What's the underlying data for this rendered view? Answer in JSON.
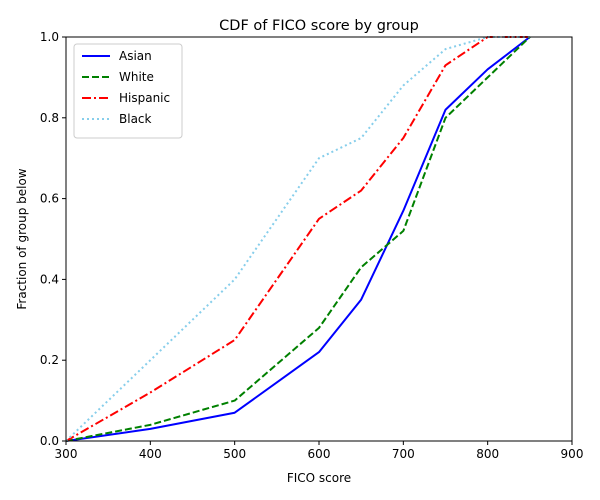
{
  "chart_data": {
    "type": "line",
    "title": "CDF of FICO score by group",
    "xlabel": "FICO score",
    "ylabel": "Fraction of group below",
    "xlim": [
      300,
      900
    ],
    "ylim": [
      0,
      1
    ],
    "xticks": [
      "300",
      "400",
      "500",
      "600",
      "700",
      "800",
      "900"
    ],
    "yticks": [
      "0.0",
      "0.2",
      "0.4",
      "0.6",
      "0.8",
      "1.0"
    ],
    "xtick_values": [
      300,
      400,
      500,
      600,
      700,
      800,
      900
    ],
    "ytick_values": [
      0,
      0.2,
      0.4,
      0.6,
      0.8,
      1.0
    ],
    "grid": false,
    "legend_position": "top-left",
    "series": [
      {
        "name": "Asian",
        "color": "#0000ff",
        "style": "solid",
        "x": [
          300,
          400,
          500,
          600,
          650,
          700,
          750,
          800,
          850
        ],
        "y": [
          0.0,
          0.03,
          0.07,
          0.22,
          0.35,
          0.57,
          0.82,
          0.92,
          1.0
        ]
      },
      {
        "name": "White",
        "color": "#008000",
        "style": "dashed",
        "x": [
          300,
          400,
          500,
          600,
          650,
          700,
          750,
          800,
          850
        ],
        "y": [
          0.0,
          0.04,
          0.1,
          0.28,
          0.43,
          0.52,
          0.8,
          0.9,
          1.0
        ]
      },
      {
        "name": "Hispanic",
        "color": "#ff0000",
        "style": "dashdot",
        "x": [
          300,
          400,
          500,
          600,
          650,
          700,
          750,
          800,
          850
        ],
        "y": [
          0.0,
          0.12,
          0.25,
          0.55,
          0.62,
          0.75,
          0.93,
          1.0,
          1.0
        ]
      },
      {
        "name": "Black",
        "color": "#87ceeb",
        "style": "dotted",
        "x": [
          300,
          400,
          500,
          600,
          650,
          700,
          750,
          800,
          850
        ],
        "y": [
          0.0,
          0.2,
          0.4,
          0.7,
          0.75,
          0.88,
          0.97,
          1.0,
          1.0
        ]
      }
    ]
  }
}
